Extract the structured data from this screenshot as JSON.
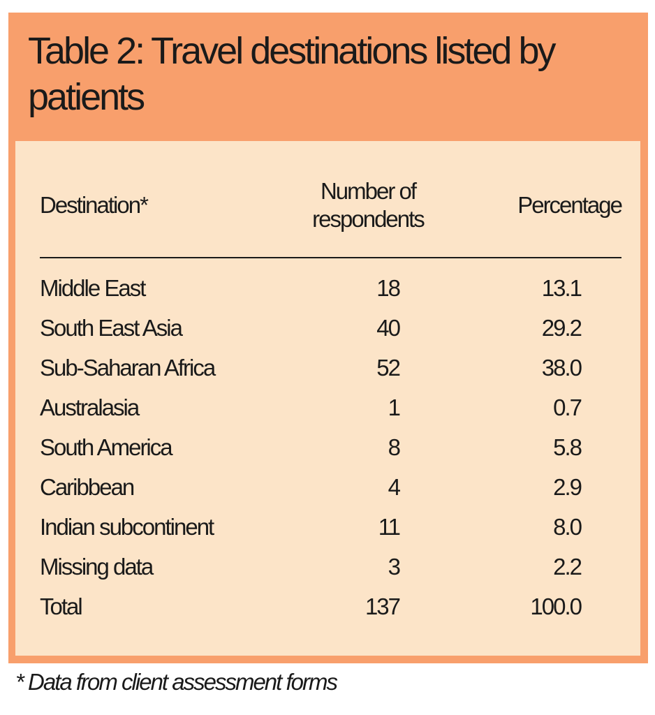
{
  "table": {
    "title": "Table 2: Travel destinations listed by patients",
    "headers": {
      "destination": "Destination*",
      "respondents_line1": "Number of",
      "respondents_line2": "respondents",
      "percentage": "Percentage"
    },
    "rows": [
      {
        "destination": "Middle East",
        "respondents": "18",
        "percentage": "13.1"
      },
      {
        "destination": "South East Asia",
        "respondents": "40",
        "percentage": "29.2"
      },
      {
        "destination": "Sub-Saharan Africa",
        "respondents": "52",
        "percentage": "38.0"
      },
      {
        "destination": "Australasia",
        "respondents": "1",
        "percentage": "0.7"
      },
      {
        "destination": "South America",
        "respondents": "8",
        "percentage": "5.8"
      },
      {
        "destination": "Caribbean",
        "respondents": "4",
        "percentage": "2.9"
      },
      {
        "destination": "Indian subcontinent",
        "respondents": "11",
        "percentage": "8.0"
      },
      {
        "destination": "Missing data",
        "respondents": "3",
        "percentage": "2.2"
      },
      {
        "destination": "Total",
        "respondents": "137",
        "percentage": "100.0"
      }
    ]
  },
  "footnote": "* Data from client assessment forms",
  "colors": {
    "frame": "#F89F6C",
    "panel": "#FCE4C8",
    "text": "#1a1a1a"
  }
}
